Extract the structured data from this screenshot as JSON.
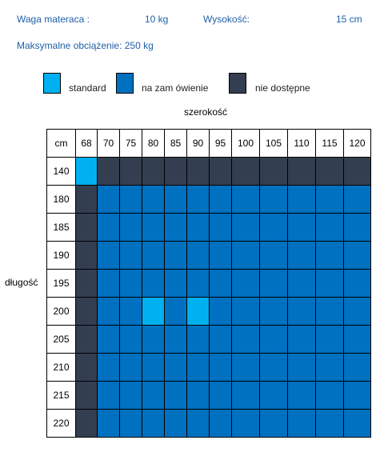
{
  "info": {
    "weight_label": "Waga materaca :",
    "weight_value": "10 kg",
    "height_label": "Wysokość:",
    "height_value": "15 cm",
    "max_load": "Maksymalne obciążenie: 250 kg"
  },
  "legend": [
    {
      "key": "S",
      "label": "standard",
      "color": "#00b0f0"
    },
    {
      "key": "Z",
      "label": "na zam ówienie",
      "color": "#0070c0"
    },
    {
      "key": "N",
      "label": "nie dostępne",
      "color": "#333f50"
    }
  ],
  "grid": {
    "width_title": "szerokość",
    "length_title": "długość",
    "corner_label": "cm",
    "widths": [
      "68",
      "70",
      "75",
      "80",
      "85",
      "90",
      "95",
      "100",
      "105",
      "110",
      "115",
      "120"
    ],
    "rows": [
      {
        "length": "140",
        "cells": [
          "S",
          "N",
          "N",
          "N",
          "N",
          "N",
          "N",
          "N",
          "N",
          "N",
          "N",
          "N"
        ]
      },
      {
        "length": "180",
        "cells": [
          "N",
          "Z",
          "Z",
          "Z",
          "Z",
          "Z",
          "Z",
          "Z",
          "Z",
          "Z",
          "Z",
          "Z"
        ]
      },
      {
        "length": "185",
        "cells": [
          "N",
          "Z",
          "Z",
          "Z",
          "Z",
          "Z",
          "Z",
          "Z",
          "Z",
          "Z",
          "Z",
          "Z"
        ]
      },
      {
        "length": "190",
        "cells": [
          "N",
          "Z",
          "Z",
          "Z",
          "Z",
          "Z",
          "Z",
          "Z",
          "Z",
          "Z",
          "Z",
          "Z"
        ]
      },
      {
        "length": "195",
        "cells": [
          "N",
          "Z",
          "Z",
          "Z",
          "Z",
          "Z",
          "Z",
          "Z",
          "Z",
          "Z",
          "Z",
          "Z"
        ]
      },
      {
        "length": "200",
        "cells": [
          "N",
          "Z",
          "Z",
          "S",
          "Z",
          "S",
          "Z",
          "Z",
          "Z",
          "Z",
          "Z",
          "Z"
        ]
      },
      {
        "length": "205",
        "cells": [
          "N",
          "Z",
          "Z",
          "Z",
          "Z",
          "Z",
          "Z",
          "Z",
          "Z",
          "Z",
          "Z",
          "Z"
        ]
      },
      {
        "length": "210",
        "cells": [
          "N",
          "Z",
          "Z",
          "Z",
          "Z",
          "Z",
          "Z",
          "Z",
          "Z",
          "Z",
          "Z",
          "Z"
        ]
      },
      {
        "length": "215",
        "cells": [
          "N",
          "Z",
          "Z",
          "Z",
          "Z",
          "Z",
          "Z",
          "Z",
          "Z",
          "Z",
          "Z",
          "Z"
        ]
      },
      {
        "length": "220",
        "cells": [
          "N",
          "Z",
          "Z",
          "Z",
          "Z",
          "Z",
          "Z",
          "Z",
          "Z",
          "Z",
          "Z",
          "Z"
        ]
      }
    ]
  }
}
